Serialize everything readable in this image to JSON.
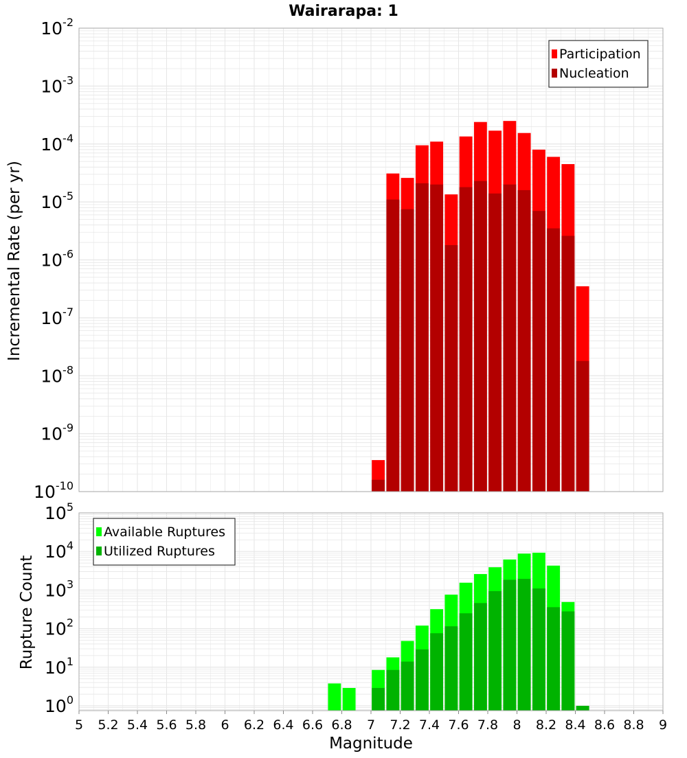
{
  "title": "Wairarapa: 1",
  "colors": {
    "participation": "#ff0000",
    "nucleation": "#b30000",
    "available": "#00ff00",
    "utilized": "#00b300",
    "grid": "#e6e6e6",
    "frame": "#aaaaaa"
  },
  "chart_data": [
    {
      "type": "bar",
      "name": "rate",
      "ylabel": "Incremental Rate (per yr)",
      "yscale": "log",
      "ylim": [
        1e-10,
        0.01
      ],
      "xlim": [
        5,
        9
      ],
      "bin_width": 0.1,
      "legend_placement": "top-right",
      "grid": true,
      "series": [
        {
          "name": "Participation",
          "color_key": "participation",
          "points": [
            {
              "x": 7.05,
              "y": 3.5e-10
            },
            {
              "x": 7.15,
              "y": 3.1e-05
            },
            {
              "x": 7.25,
              "y": 2.6e-05
            },
            {
              "x": 7.35,
              "y": 9.5e-05
            },
            {
              "x": 7.45,
              "y": 0.00011
            },
            {
              "x": 7.55,
              "y": 1.35e-05
            },
            {
              "x": 7.65,
              "y": 0.000135
            },
            {
              "x": 7.75,
              "y": 0.00024
            },
            {
              "x": 7.85,
              "y": 0.00017
            },
            {
              "x": 7.95,
              "y": 0.00025
            },
            {
              "x": 8.05,
              "y": 0.000155
            },
            {
              "x": 8.15,
              "y": 8e-05
            },
            {
              "x": 8.25,
              "y": 6e-05
            },
            {
              "x": 8.35,
              "y": 4.5e-05
            },
            {
              "x": 8.45,
              "y": 3.5e-07
            }
          ]
        },
        {
          "name": "Nucleation",
          "color_key": "nucleation",
          "points": [
            {
              "x": 7.05,
              "y": 1.6e-10
            },
            {
              "x": 7.15,
              "y": 1.1e-05
            },
            {
              "x": 7.25,
              "y": 7.5e-06
            },
            {
              "x": 7.35,
              "y": 2.1e-05
            },
            {
              "x": 7.45,
              "y": 2e-05
            },
            {
              "x": 7.55,
              "y": 1.8e-06
            },
            {
              "x": 7.65,
              "y": 1.8e-05
            },
            {
              "x": 7.75,
              "y": 2.3e-05
            },
            {
              "x": 7.85,
              "y": 1.4e-05
            },
            {
              "x": 7.95,
              "y": 2e-05
            },
            {
              "x": 8.05,
              "y": 1.6e-05
            },
            {
              "x": 8.15,
              "y": 7e-06
            },
            {
              "x": 8.25,
              "y": 3.5e-06
            },
            {
              "x": 8.35,
              "y": 2.6e-06
            },
            {
              "x": 8.45,
              "y": 1.8e-08
            }
          ]
        }
      ]
    },
    {
      "type": "bar",
      "name": "count",
      "xlabel": "Magnitude",
      "ylabel": "Rupture Count",
      "yscale": "log",
      "ylim": [
        0.75,
        100000.0
      ],
      "xlim": [
        5,
        9
      ],
      "bin_width": 0.1,
      "xticks": [
        "5",
        "5.2",
        "5.4",
        "5.6",
        "5.8",
        "6",
        "6.2",
        "6.4",
        "6.6",
        "6.8",
        "7",
        "7.2",
        "7.4",
        "7.6",
        "7.8",
        "8",
        "8.2",
        "8.4",
        "8.6",
        "8.8",
        "9"
      ],
      "legend_placement": "top-left",
      "grid": true,
      "series": [
        {
          "name": "Available Ruptures",
          "color_key": "available",
          "points": [
            {
              "x": 6.75,
              "y": 3.8
            },
            {
              "x": 6.85,
              "y": 2.9
            },
            {
              "x": 7.05,
              "y": 8.5
            },
            {
              "x": 7.15,
              "y": 18
            },
            {
              "x": 7.25,
              "y": 48
            },
            {
              "x": 7.35,
              "y": 120
            },
            {
              "x": 7.45,
              "y": 320
            },
            {
              "x": 7.55,
              "y": 760
            },
            {
              "x": 7.65,
              "y": 1550
            },
            {
              "x": 7.75,
              "y": 2600
            },
            {
              "x": 7.85,
              "y": 3900
            },
            {
              "x": 7.95,
              "y": 6200
            },
            {
              "x": 8.05,
              "y": 8800
            },
            {
              "x": 8.15,
              "y": 9300
            },
            {
              "x": 8.25,
              "y": 4300
            },
            {
              "x": 8.35,
              "y": 490
            },
            {
              "x": 8.45,
              "y": 1
            }
          ]
        },
        {
          "name": "Utilized Ruptures",
          "color_key": "utilized",
          "points": [
            {
              "x": 7.05,
              "y": 2.9
            },
            {
              "x": 7.15,
              "y": 8.5
            },
            {
              "x": 7.25,
              "y": 14
            },
            {
              "x": 7.35,
              "y": 29
            },
            {
              "x": 7.45,
              "y": 76
            },
            {
              "x": 7.55,
              "y": 115
            },
            {
              "x": 7.65,
              "y": 250
            },
            {
              "x": 7.75,
              "y": 460
            },
            {
              "x": 7.85,
              "y": 940
            },
            {
              "x": 7.95,
              "y": 1850
            },
            {
              "x": 8.05,
              "y": 1950
            },
            {
              "x": 8.15,
              "y": 1100
            },
            {
              "x": 8.25,
              "y": 360
            },
            {
              "x": 8.35,
              "y": 280
            },
            {
              "x": 8.45,
              "y": 1
            }
          ]
        }
      ]
    }
  ]
}
